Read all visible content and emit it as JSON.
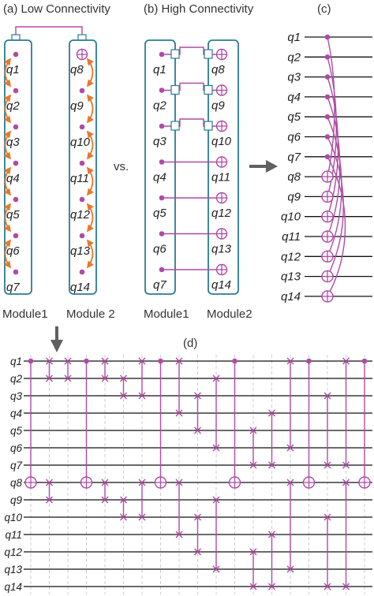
{
  "colors": {
    "module_border": "#2a7c94",
    "gate": "#b04aa6",
    "swap_arrow": "#e8782a",
    "wire": "#111111",
    "arrow": "#606060",
    "grid_dash": "#c8c8c8"
  },
  "panel_a": {
    "title": "(a) Low Connectivity",
    "module1_label": "Module1",
    "module2_label": "Module 2",
    "module1_qubits": [
      "q1",
      "q2",
      "q3",
      "q4",
      "q5",
      "q6",
      "q7"
    ],
    "module2_qubits": [
      "q8",
      "q9",
      "q10",
      "q11",
      "q12",
      "q13",
      "q14"
    ]
  },
  "vs_label": "vs.",
  "panel_b": {
    "title": "(b) High Connectivity",
    "module1_label": "Module1",
    "module2_label": "Module2",
    "module1_qubits": [
      "q1",
      "q2",
      "q3",
      "q4",
      "q5",
      "q6",
      "q7"
    ],
    "module2_qubits": [
      "q8",
      "q9",
      "q10",
      "q11",
      "q12",
      "q13",
      "q14"
    ]
  },
  "panel_c": {
    "title": "(c)",
    "qubits": [
      "q1",
      "q2",
      "q3",
      "q4",
      "q5",
      "q6",
      "q7",
      "q8",
      "q9",
      "q10",
      "q11",
      "q12",
      "q13",
      "q14"
    ]
  },
  "panel_d": {
    "title": "(d)",
    "qubits": [
      "q1",
      "q2",
      "q3",
      "q4",
      "q5",
      "q6",
      "q7",
      "q8",
      "q9",
      "q10",
      "q11",
      "q12",
      "q13",
      "q14"
    ]
  }
}
